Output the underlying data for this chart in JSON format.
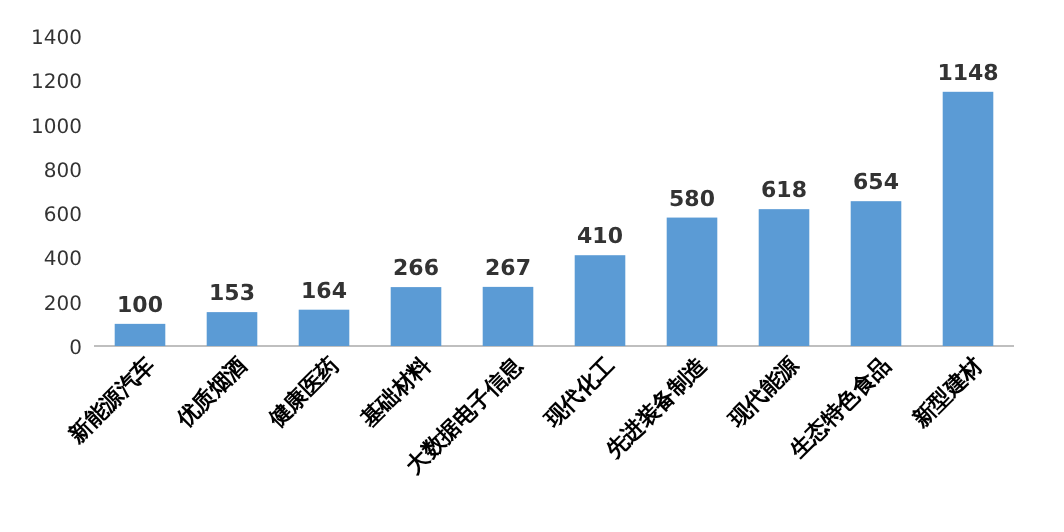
{
  "chart_data": {
    "type": "bar",
    "categories": [
      "新能源汽车",
      "优质烟酒",
      "健康医药",
      "基础材料",
      "大数据电子信息",
      "现代化工",
      "先进装备制造",
      "现代能源",
      "生态特色食品",
      "新型建材"
    ],
    "values": [
      100,
      153,
      164,
      266,
      267,
      410,
      580,
      618,
      654,
      1148
    ],
    "color": "#5b9bd5",
    "ylim": [
      0,
      1400
    ],
    "yticks": [
      0,
      200,
      400,
      600,
      800,
      1000,
      1200,
      1400
    ],
    "data_labels": true
  }
}
